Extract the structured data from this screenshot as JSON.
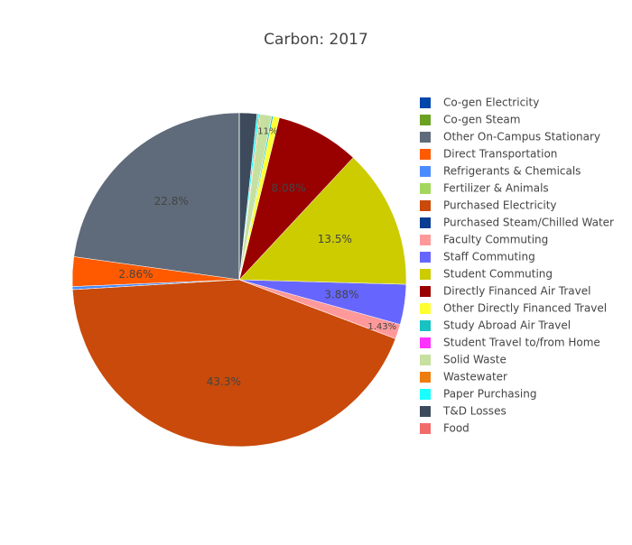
{
  "chart_data": {
    "type": "pie",
    "title": "Carbon: 2017",
    "categories": [
      "Co-gen Electricity",
      "Co-gen Steam",
      "Other On-Campus Stationary",
      "Direct Transportation",
      "Refrigerants & Chemicals",
      "Fertilizer & Animals",
      "Purchased Electricity",
      "Purchased Steam/Chilled Water",
      "Faculty Commuting",
      "Staff Commuting",
      "Student Commuting",
      "Directly Financed Air Travel",
      "Other Directly Financed Travel",
      "Study Abroad Air Travel",
      "Student Travel to/from Home",
      "Solid Waste",
      "Wastewater",
      "Paper Purchasing",
      "T&D Losses",
      "Food"
    ],
    "values": [
      0,
      0,
      22.8,
      2.86,
      0.3,
      0,
      43.3,
      0,
      1.43,
      3.88,
      13.5,
      8.08,
      0.6,
      0.15,
      0,
      1.11,
      0.1,
      0.2,
      1.7,
      0
    ],
    "value_labels": [
      null,
      null,
      "22.8%",
      "2.86%",
      null,
      null,
      "43.3%",
      null,
      "1.43%",
      "3.88%",
      "13.5%",
      "8.08%",
      null,
      null,
      null,
      "1.11%",
      null,
      null,
      null,
      null
    ],
    "colors": [
      "#0047ab",
      "#6aa121",
      "#5f6b7a",
      "#ff5a00",
      "#4a8cff",
      "#a4d65e",
      "#c94a0a",
      "#0a3d91",
      "#ff9999",
      "#6666ff",
      "#cccc00",
      "#990000",
      "#ffff33",
      "#19c2c2",
      "#ff33ff",
      "#c6e0a0",
      "#ed7d10",
      "#19ffff",
      "#3d4a5c",
      "#f26b6b"
    ],
    "direction": "counterclockwise"
  }
}
